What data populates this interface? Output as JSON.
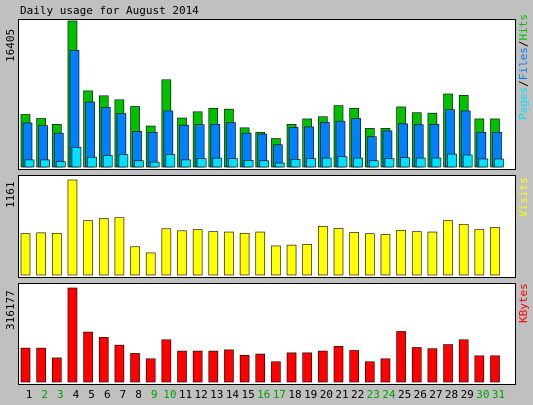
{
  "chart_data": [
    {
      "type": "bar",
      "title": "Daily usage for August 2014",
      "ylabel_max": "16405",
      "legend": {
        "hits": "Hits",
        "files": "Files",
        "pages": "Pages",
        "sep": "/"
      },
      "categories": [
        "1",
        "2",
        "3",
        "4",
        "5",
        "6",
        "7",
        "8",
        "9",
        "10",
        "11",
        "12",
        "13",
        "14",
        "15",
        "16",
        "17",
        "18",
        "19",
        "20",
        "21",
        "22",
        "23",
        "24",
        "25",
        "26",
        "27",
        "28",
        "29",
        "30",
        "31"
      ],
      "ylim": [
        0,
        16405
      ],
      "series": [
        {
          "name": "Hits",
          "color": "#00c000",
          "values": [
            5900,
            5450,
            4800,
            16405,
            8550,
            8000,
            7550,
            6800,
            4600,
            9800,
            5500,
            6200,
            6600,
            6500,
            4400,
            3900,
            3200,
            4800,
            5400,
            5650,
            6900,
            6600,
            4350,
            4350,
            6750,
            6100,
            6050,
            8200,
            8050,
            5400,
            5400
          ]
        },
        {
          "name": "Files",
          "color": "#0080ff",
          "values": [
            4950,
            4650,
            3800,
            13100,
            7300,
            6700,
            6000,
            4000,
            3900,
            6300,
            4700,
            4750,
            4800,
            5000,
            3800,
            3700,
            2500,
            4450,
            4500,
            5000,
            5150,
            5450,
            3400,
            4050,
            4850,
            4750,
            4800,
            6450,
            6300,
            3900,
            3900
          ]
        },
        {
          "name": "Pages",
          "color": "#00e0ff",
          "values": [
            800,
            800,
            600,
            2200,
            1100,
            1300,
            1400,
            700,
            550,
            1400,
            800,
            950,
            1000,
            950,
            750,
            700,
            450,
            850,
            950,
            1000,
            1150,
            1000,
            700,
            950,
            1050,
            1000,
            1000,
            1450,
            1350,
            900,
            900
          ]
        }
      ]
    },
    {
      "type": "bar",
      "ylabel_max": "1161",
      "legend": {
        "visits": "Visits"
      },
      "categories": [
        "1",
        "2",
        "3",
        "4",
        "5",
        "6",
        "7",
        "8",
        "9",
        "10",
        "11",
        "12",
        "13",
        "14",
        "15",
        "16",
        "17",
        "18",
        "19",
        "20",
        "21",
        "22",
        "23",
        "24",
        "25",
        "26",
        "27",
        "28",
        "29",
        "30",
        "31"
      ],
      "ylim": [
        0,
        1161
      ],
      "series": [
        {
          "name": "Visits",
          "color": "#ffff00",
          "values": [
            505,
            515,
            510,
            1161,
            665,
            690,
            700,
            345,
            270,
            565,
            540,
            555,
            530,
            525,
            510,
            525,
            355,
            365,
            375,
            595,
            570,
            520,
            505,
            495,
            545,
            530,
            525,
            665,
            620,
            555,
            580
          ]
        }
      ]
    },
    {
      "type": "bar",
      "ylabel_max": "316177",
      "legend": {
        "kbytes": "KBytes"
      },
      "categories": [
        "1",
        "2",
        "3",
        "4",
        "5",
        "6",
        "7",
        "8",
        "9",
        "10",
        "11",
        "12",
        "13",
        "14",
        "15",
        "16",
        "17",
        "18",
        "19",
        "20",
        "21",
        "22",
        "23",
        "24",
        "25",
        "26",
        "27",
        "28",
        "29",
        "30",
        "31"
      ],
      "ylim": [
        0,
        316177
      ],
      "series": [
        {
          "name": "KBytes",
          "color": "#ff0000",
          "values": [
            114000,
            114000,
            81000,
            316177,
            168000,
            150000,
            124000,
            96000,
            78000,
            142000,
            104000,
            104000,
            104000,
            108000,
            90000,
            94000,
            68000,
            98000,
            98000,
            104000,
            120000,
            106000,
            68000,
            78000,
            170000,
            116000,
            112000,
            126000,
            142000,
            88000,
            88000
          ]
        }
      ]
    }
  ],
  "weekend_days": [
    2,
    3,
    9,
    10,
    16,
    17,
    23,
    24,
    30,
    31
  ],
  "colors": {
    "background": "#c0c0c0",
    "plot_bg": "#ffffff",
    "weekday_label": "#000000",
    "weekend_label": "#00a000",
    "hits": "#00c000",
    "files": "#0080ff",
    "pages": "#00e0ff",
    "visits": "#ffff00",
    "kbytes": "#ff0000"
  }
}
